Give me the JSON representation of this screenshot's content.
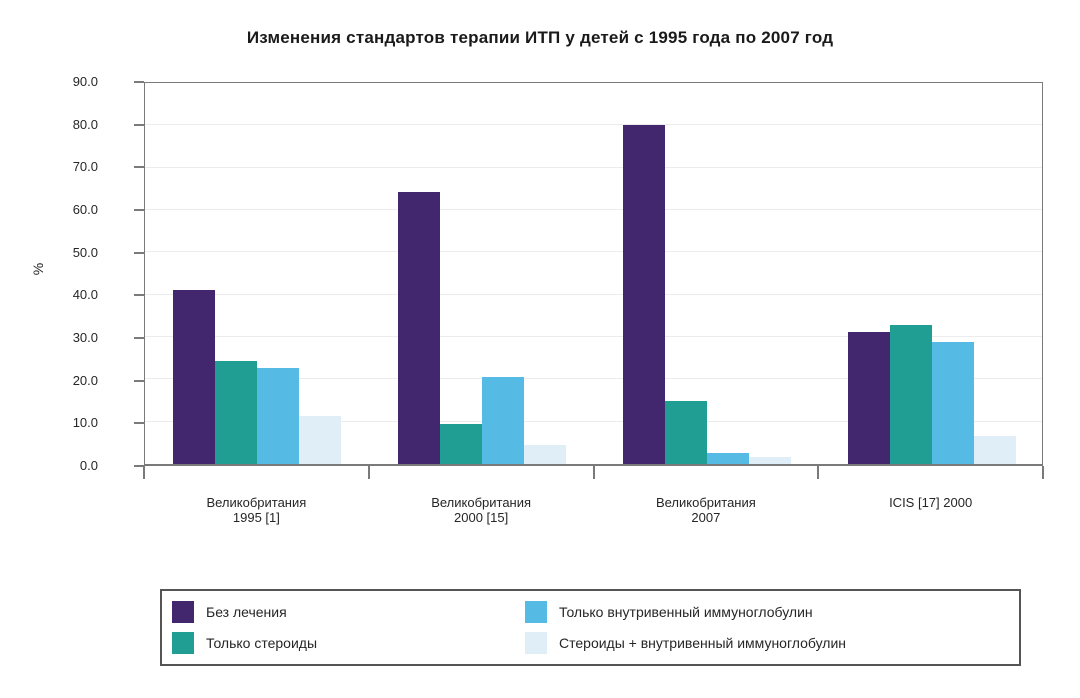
{
  "chart_data": {
    "type": "bar",
    "title": "Изменения стандартов терапии ИТП у детей с 1995 года по 2007 год",
    "xlabel": "",
    "ylabel": "%",
    "ylim": [
      0,
      90
    ],
    "ytick_step": 10,
    "ytick_labels": [
      "0.0",
      "10.0",
      "20.0",
      "30.0",
      "40.0",
      "50.0",
      "60.0",
      "70.0",
      "80.0",
      "90.0"
    ],
    "grid": true,
    "legend_position": "bottom-box-two-columns",
    "categories": [
      [
        "Великобритания",
        "1995 [1]"
      ],
      [
        "Великобритания",
        "2000 [15]"
      ],
      [
        "Великобритания",
        "2007"
      ],
      [
        "ICIS [17] 2000"
      ]
    ],
    "series": [
      {
        "name": "Без лечения",
        "color": "#42266E",
        "values": [
          41.0,
          64.2,
          80.0,
          31.1
        ]
      },
      {
        "name": "Только стероиды",
        "color": "#219E94",
        "values": [
          24.3,
          9.4,
          14.9,
          32.9
        ]
      },
      {
        "name": "Только внутривенный иммуноглобулин",
        "color": "#55BAE4",
        "values": [
          22.7,
          20.5,
          2.6,
          28.9
        ]
      },
      {
        "name": "Стероиды + внутривенный иммуноглобулин",
        "color": "#E0EEF8",
        "values": [
          11.3,
          4.5,
          1.6,
          6.6
        ]
      }
    ]
  },
  "colors": {
    "axis": "#7a7a7a",
    "gridline": "#ececec",
    "legend_border": "#555555",
    "text": "#262626",
    "title": "#1a1a1a",
    "background": "#ffffff"
  }
}
